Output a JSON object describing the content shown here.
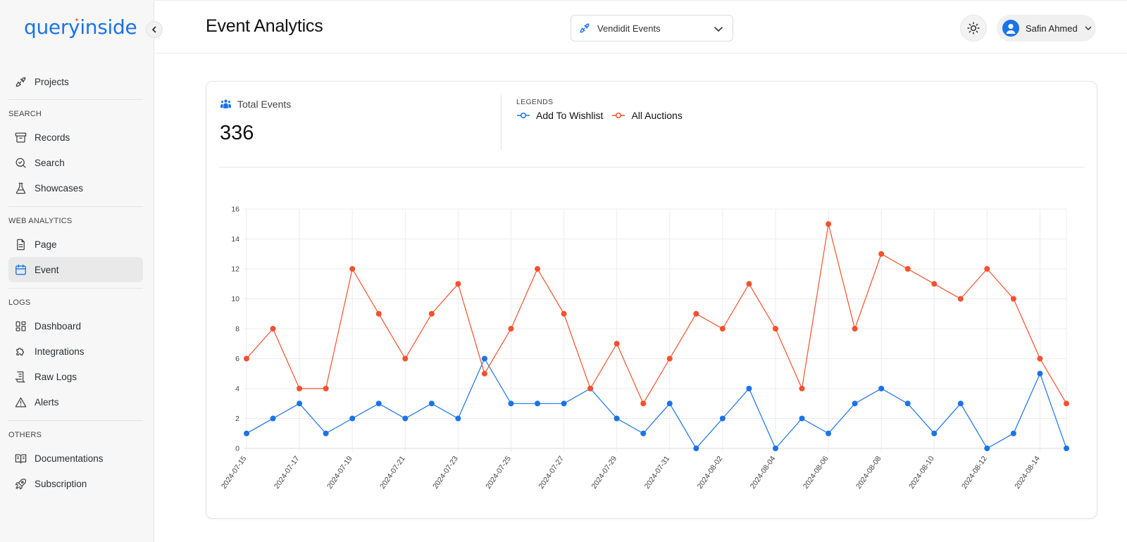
{
  "app": {
    "logo": "queryinside",
    "collapse_icon": "chevron-left-icon"
  },
  "sidebar": {
    "top_items": [
      {
        "label": "Projects",
        "icon": "plug-icon"
      }
    ],
    "sections": [
      {
        "title": "SEARCH",
        "items": [
          {
            "label": "Records",
            "icon": "archive-icon"
          },
          {
            "label": "Search",
            "icon": "search-icon"
          },
          {
            "label": "Showcases",
            "icon": "flask-icon"
          }
        ]
      },
      {
        "title": "WEB ANALYTICS",
        "items": [
          {
            "label": "Page",
            "icon": "document-icon"
          },
          {
            "label": "Event",
            "icon": "calendar-icon",
            "active": true
          }
        ]
      },
      {
        "title": "LOGS",
        "items": [
          {
            "label": "Dashboard",
            "icon": "dashboard-icon"
          },
          {
            "label": "Integrations",
            "icon": "puzzle-icon"
          },
          {
            "label": "Raw Logs",
            "icon": "receipt-icon"
          },
          {
            "label": "Alerts",
            "icon": "alert-icon"
          }
        ]
      },
      {
        "title": "OTHERS",
        "items": [
          {
            "label": "Documentations",
            "icon": "book-icon"
          },
          {
            "label": "Subscription",
            "icon": "rocket-icon"
          }
        ]
      }
    ]
  },
  "header": {
    "title": "Event Analytics",
    "project_select": {
      "value": "Vendidit Events",
      "icon": "plug-icon"
    },
    "theme_icon": "sun-icon",
    "user": {
      "name": "Safin Ahmed",
      "icon": "user-icon"
    }
  },
  "summary": {
    "label": "Total Events",
    "value": "336",
    "icon": "users-icon",
    "legend_title": "LEGENDS"
  },
  "colors": {
    "accent": "#1a73e8",
    "series_blue": "#1a73e8",
    "series_red": "#f4512c"
  },
  "chart_data": {
    "type": "line",
    "x": [
      "2024-07-15",
      "2024-07-16",
      "2024-07-17",
      "2024-07-18",
      "2024-07-19",
      "2024-07-20",
      "2024-07-21",
      "2024-07-22",
      "2024-07-23",
      "2024-07-24",
      "2024-07-25",
      "2024-07-26",
      "2024-07-27",
      "2024-07-28",
      "2024-07-29",
      "2024-07-30",
      "2024-07-31",
      "2024-08-01",
      "2024-08-02",
      "2024-08-03",
      "2024-08-04",
      "2024-08-05",
      "2024-08-06",
      "2024-08-07",
      "2024-08-08",
      "2024-08-09",
      "2024-08-10",
      "2024-08-11",
      "2024-08-12",
      "2024-08-13",
      "2024-08-14",
      "2024-08-15"
    ],
    "x_tick_labels": [
      "2024-07-15",
      "2024-07-17",
      "2024-07-19",
      "2024-07-21",
      "2024-07-23",
      "2024-07-25",
      "2024-07-27",
      "2024-07-29",
      "2024-07-31",
      "2024-08-02",
      "2024-08-04",
      "2024-08-06",
      "2024-08-08",
      "2024-08-10",
      "2024-08-12",
      "2024-08-14"
    ],
    "y_ticks": [
      0,
      2,
      4,
      6,
      8,
      10,
      12,
      14,
      16
    ],
    "ylim": [
      0,
      16
    ],
    "grid": true,
    "legend": "top-left",
    "series": [
      {
        "name": "Add To Wishlist",
        "color": "#1a73e8",
        "values": [
          1,
          2,
          3,
          1,
          2,
          3,
          2,
          3,
          2,
          6,
          3,
          3,
          3,
          4,
          2,
          1,
          3,
          0,
          2,
          4,
          0,
          2,
          1,
          3,
          4,
          3,
          1,
          3,
          0,
          1,
          5,
          0
        ]
      },
      {
        "name": "All Auctions",
        "color": "#f4512c",
        "values": [
          6,
          8,
          4,
          4,
          12,
          9,
          6,
          9,
          11,
          5,
          8,
          12,
          9,
          4,
          7,
          3,
          6,
          9,
          8,
          11,
          8,
          4,
          15,
          8,
          13,
          12,
          11,
          10,
          12,
          10,
          6,
          3
        ]
      }
    ]
  }
}
